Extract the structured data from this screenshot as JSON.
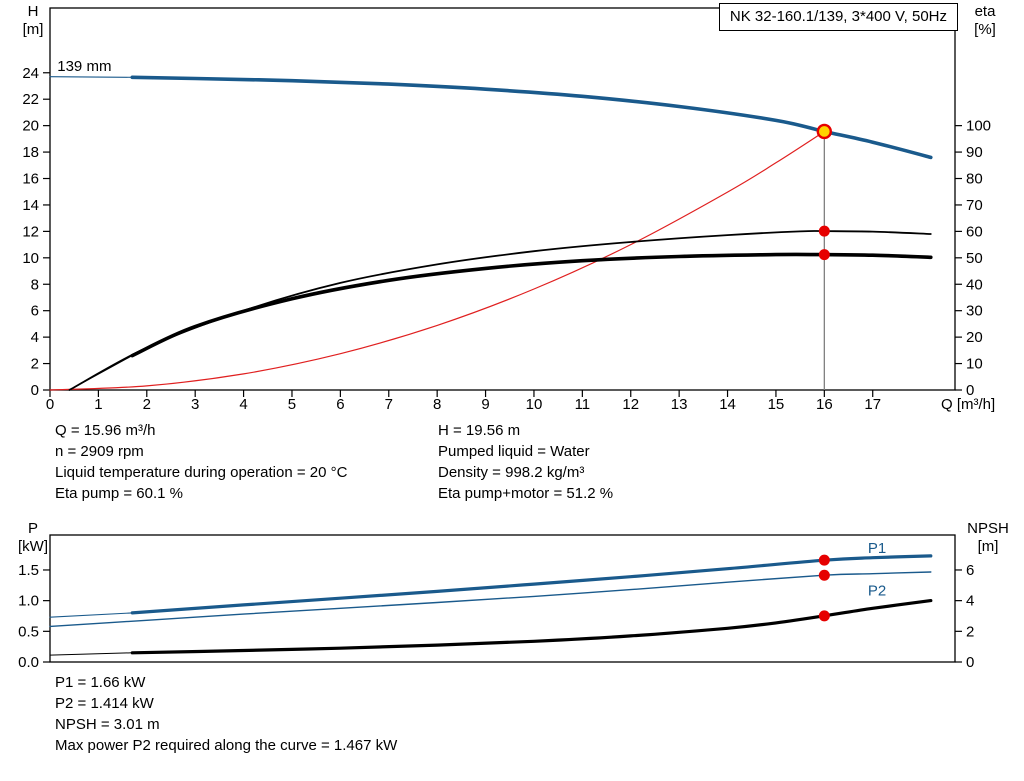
{
  "title_box": {
    "label": "NK 32-160.1/139, 3*400 V, 50Hz"
  },
  "colors": {
    "blue": "#1a5a8c",
    "black": "#000000",
    "red": "#e02020",
    "marker": "#e60000",
    "duty_fill": "#ffd400",
    "gray": "#808080"
  },
  "info_top": {
    "left": [
      "Q = 15.96 m³/h",
      "n = 2909 rpm",
      "Liquid temperature during operation = 20 °C",
      "Eta pump = 60.1 %"
    ],
    "right": [
      "H = 19.56 m",
      "Pumped liquid = Water",
      "Density = 998.2 kg/m³",
      "Eta pump+motor = 51.2 %"
    ]
  },
  "info_bottom": [
    "P1 = 1.66 kW",
    "P2 = 1.414 kW",
    "NPSH = 3.01 m",
    "Max power P2 required along the curve = 1.467 kW"
  ],
  "chart_data": [
    {
      "id": "head-efficiency",
      "type": "line",
      "title": "NK 32-160.1/139, 3*400 V, 50Hz",
      "x": {
        "label": "Q [m³/h]",
        "min": 0,
        "max": 18.7,
        "ticks": [
          0,
          1,
          2,
          3,
          4,
          5,
          6,
          7,
          8,
          9,
          10,
          11,
          12,
          13,
          14,
          15,
          16,
          17
        ]
      },
      "left_axis": {
        "label_lines": [
          "H",
          "[m]"
        ],
        "min": 0,
        "max": 28.9,
        "ticks": [
          0,
          2,
          4,
          6,
          8,
          10,
          12,
          14,
          16,
          18,
          20,
          22,
          24
        ]
      },
      "right_axis": {
        "label_lines": [
          "eta",
          "[%]"
        ],
        "min": 0,
        "max": 144.5,
        "ticks": [
          0,
          10,
          20,
          30,
          40,
          50,
          60,
          70,
          80,
          90,
          100
        ]
      },
      "series": [
        {
          "name": "impeller-139mm-leader",
          "axis": "left",
          "color": "blue",
          "width": 1.1,
          "smooth": false,
          "points": [
            [
              0,
              23.7
            ],
            [
              1.7,
              23.66
            ]
          ]
        },
        {
          "name": "impeller-139mm",
          "axis": "left",
          "color": "blue",
          "width": 3.6,
          "smooth": true,
          "points": [
            [
              1.7,
              23.66
            ],
            [
              3,
              23.57
            ],
            [
              5,
              23.4
            ],
            [
              7,
              23.14
            ],
            [
              9,
              22.76
            ],
            [
              11,
              22.22
            ],
            [
              13,
              21.45
            ],
            [
              15,
              20.4
            ],
            [
              16,
              19.56
            ],
            [
              17,
              18.75
            ],
            [
              18.2,
              17.6
            ]
          ]
        },
        {
          "name": "system-curve",
          "axis": "left",
          "color": "red",
          "width": 1.2,
          "smooth": true,
          "points": [
            [
              0,
              0
            ],
            [
              2,
              0.31
            ],
            [
              4,
              1.22
            ],
            [
              6,
              2.75
            ],
            [
              8,
              4.89
            ],
            [
              10,
              7.64
            ],
            [
              12,
              11.0
            ],
            [
              14,
              14.97
            ],
            [
              15,
              17.19
            ],
            [
              16,
              19.56
            ]
          ]
        },
        {
          "name": "eta-pump",
          "axis": "right",
          "color": "black",
          "width": 1.8,
          "smooth": true,
          "points": [
            [
              0.4,
              0
            ],
            [
              2,
              16
            ],
            [
              4,
              30
            ],
            [
              6,
              40.5
            ],
            [
              8,
              47.5
            ],
            [
              10,
              52.5
            ],
            [
              12,
              56
            ],
            [
              14,
              58.6
            ],
            [
              15.5,
              60.0
            ],
            [
              16,
              60.1
            ],
            [
              17,
              59.9
            ],
            [
              18.2,
              59.0
            ]
          ]
        },
        {
          "name": "eta-pump-motor-leader",
          "axis": "right",
          "color": "black",
          "width": 1.0,
          "smooth": false,
          "points": [
            [
              0.4,
              0
            ],
            [
              1.7,
              13
            ]
          ]
        },
        {
          "name": "eta-pump-motor",
          "axis": "right",
          "color": "black",
          "width": 3.6,
          "smooth": true,
          "points": [
            [
              1.7,
              13
            ],
            [
              3,
              24
            ],
            [
              5,
              34.5
            ],
            [
              7,
              41.5
            ],
            [
              9,
              46
            ],
            [
              11,
              48.9
            ],
            [
              13,
              50.5
            ],
            [
              15,
              51.2
            ],
            [
              16,
              51.2
            ],
            [
              17,
              51
            ],
            [
              18.2,
              50.2
            ]
          ]
        }
      ],
      "vline": {
        "q": 16,
        "from": 19.56,
        "axis": "left"
      },
      "markers": [
        {
          "kind": "duty",
          "q": 16,
          "v": 19.56,
          "axis": "left"
        },
        {
          "kind": "dot",
          "q": 16,
          "v": 60.1,
          "axis": "right"
        },
        {
          "kind": "dot",
          "q": 16,
          "v": 51.2,
          "axis": "right"
        }
      ],
      "annotations": [
        {
          "text": "139 mm",
          "q": 0.15,
          "v": 24.15,
          "axis": "left",
          "color": "black"
        }
      ]
    },
    {
      "id": "power-npsh",
      "type": "line",
      "x": {
        "label": "",
        "min": 0,
        "max": 18.7,
        "ticks": []
      },
      "left_axis": {
        "label_lines": [
          "P",
          "[kW]"
        ],
        "min": 0,
        "max": 2.07,
        "ticks": [
          {
            "v": 0,
            "label": "0.0"
          },
          {
            "v": 0.5,
            "label": "0.5"
          },
          {
            "v": 1,
            "label": "1.0"
          },
          {
            "v": 1.5,
            "label": "1.5"
          }
        ]
      },
      "right_axis": {
        "label_lines": [
          "NPSH",
          "[m]"
        ],
        "min": 0,
        "max": 8.28,
        "ticks": [
          0,
          2,
          4,
          6
        ]
      },
      "series": [
        {
          "name": "p1-leader",
          "axis": "left",
          "color": "blue",
          "width": 1.1,
          "smooth": false,
          "points": [
            [
              0,
              0.73
            ],
            [
              1.7,
              0.8
            ]
          ]
        },
        {
          "name": "p1",
          "axis": "left",
          "color": "blue",
          "width": 3.2,
          "smooth": true,
          "points": [
            [
              1.7,
              0.8
            ],
            [
              4,
              0.93
            ],
            [
              6,
              1.04
            ],
            [
              8,
              1.15
            ],
            [
              10,
              1.27
            ],
            [
              12,
              1.39
            ],
            [
              14,
              1.52
            ],
            [
              16,
              1.66
            ],
            [
              17,
              1.7
            ],
            [
              18.2,
              1.73
            ]
          ]
        },
        {
          "name": "p2",
          "axis": "left",
          "color": "blue",
          "width": 1.4,
          "smooth": true,
          "points": [
            [
              0,
              0.58
            ],
            [
              2,
              0.68
            ],
            [
              4,
              0.78
            ],
            [
              6,
              0.875
            ],
            [
              8,
              0.97
            ],
            [
              10,
              1.07
            ],
            [
              12,
              1.18
            ],
            [
              14,
              1.3
            ],
            [
              16,
              1.414
            ],
            [
              17,
              1.44
            ],
            [
              18.2,
              1.467
            ]
          ]
        },
        {
          "name": "npsh-leader",
          "axis": "right",
          "color": "black",
          "width": 1.0,
          "smooth": false,
          "points": [
            [
              0,
              0.45
            ],
            [
              1.7,
              0.6
            ]
          ]
        },
        {
          "name": "npsh",
          "axis": "right",
          "color": "black",
          "width": 3.2,
          "smooth": true,
          "points": [
            [
              1.7,
              0.6
            ],
            [
              4,
              0.75
            ],
            [
              6,
              0.9
            ],
            [
              8,
              1.1
            ],
            [
              10,
              1.35
            ],
            [
              12,
              1.7
            ],
            [
              14,
              2.2
            ],
            [
              15,
              2.55
            ],
            [
              16,
              3.01
            ],
            [
              17,
              3.5
            ],
            [
              18.2,
              4.0
            ]
          ]
        }
      ],
      "markers": [
        {
          "kind": "dot",
          "q": 16,
          "v": 1.66,
          "axis": "left"
        },
        {
          "kind": "dot",
          "q": 16,
          "v": 1.414,
          "axis": "left"
        },
        {
          "kind": "dot",
          "q": 16,
          "v": 3.01,
          "axis": "right"
        }
      ],
      "annotations": [
        {
          "text": "P1",
          "q": 16.9,
          "v": 1.78,
          "axis": "left",
          "color": "blue"
        },
        {
          "text": "P2",
          "q": 16.9,
          "v": 1.08,
          "axis": "left",
          "color": "blue"
        }
      ]
    }
  ]
}
